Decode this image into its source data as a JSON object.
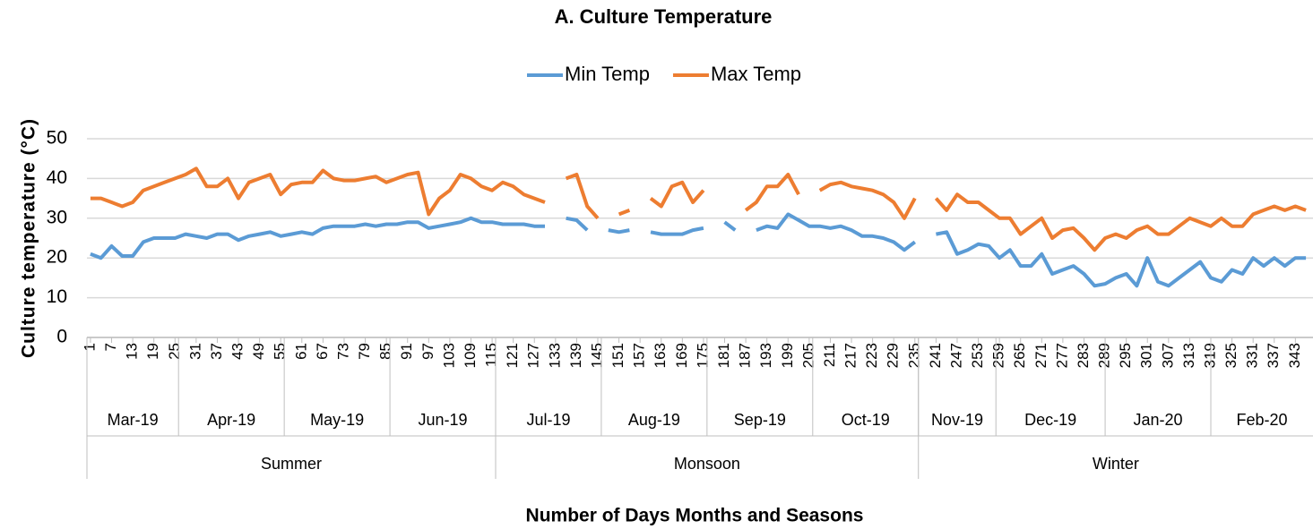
{
  "chart_data": {
    "type": "line",
    "title": "A. Culture Temperature",
    "y_label": "Culture temperature (°C)",
    "x_label": "Number of Days Months and Seasons",
    "xlim": [
      0,
      348
    ],
    "xticks": [
      1,
      7,
      13,
      19,
      25,
      31,
      37,
      43,
      49,
      55,
      61,
      67,
      73,
      79,
      85,
      91,
      97,
      103,
      109,
      115,
      121,
      127,
      133,
      139,
      145,
      151,
      157,
      163,
      169,
      175,
      181,
      187,
      193,
      199,
      205,
      211,
      217,
      223,
      229,
      235,
      241,
      247,
      253,
      259,
      265,
      271,
      277,
      283,
      289,
      295,
      301,
      307,
      313,
      319,
      325,
      331,
      337,
      343
    ],
    "ylim": [
      0,
      50
    ],
    "yticks": [
      0,
      10,
      20,
      30,
      40,
      50
    ],
    "grid": true,
    "legend": "top",
    "months": [
      {
        "label": "Mar-19",
        "start": 0,
        "end": 26
      },
      {
        "label": "Apr-19",
        "start": 26,
        "end": 56
      },
      {
        "label": "May-19",
        "start": 56,
        "end": 86
      },
      {
        "label": "Jun-19",
        "start": 86,
        "end": 116
      },
      {
        "label": "Jul-19",
        "start": 116,
        "end": 146
      },
      {
        "label": "Aug-19",
        "start": 146,
        "end": 176
      },
      {
        "label": "Sep-19",
        "start": 176,
        "end": 206
      },
      {
        "label": "Oct-19",
        "start": 206,
        "end": 236
      },
      {
        "label": "Nov-19",
        "start": 236,
        "end": 258
      },
      {
        "label": "Dec-19",
        "start": 258,
        "end": 289
      },
      {
        "label": "Jan-20",
        "start": 289,
        "end": 319
      },
      {
        "label": "Feb-20",
        "start": 319,
        "end": 348
      }
    ],
    "seasons": [
      {
        "label": "Summer",
        "start": 0,
        "end": 116
      },
      {
        "label": "Monsoon",
        "start": 116,
        "end": 236
      },
      {
        "label": "Winter",
        "start": 236,
        "end": 348
      }
    ],
    "x": [
      1,
      4,
      7,
      10,
      13,
      16,
      19,
      22,
      25,
      28,
      31,
      34,
      37,
      40,
      43,
      46,
      49,
      52,
      55,
      58,
      61,
      64,
      67,
      70,
      73,
      76,
      79,
      82,
      85,
      88,
      91,
      94,
      97,
      100,
      103,
      106,
      109,
      112,
      115,
      118,
      121,
      124,
      127,
      130,
      133,
      136,
      139,
      142,
      145,
      148,
      151,
      154,
      157,
      160,
      163,
      166,
      169,
      172,
      175,
      178,
      181,
      184,
      187,
      190,
      193,
      196,
      199,
      202,
      205,
      208,
      211,
      214,
      217,
      220,
      223,
      226,
      229,
      232,
      235,
      238,
      241,
      244,
      247,
      250,
      253,
      256,
      259,
      262,
      265,
      268,
      271,
      274,
      277,
      280,
      283,
      286,
      289,
      292,
      295,
      298,
      301,
      304,
      307,
      310,
      313,
      316,
      319,
      322,
      325,
      328,
      331,
      334,
      337,
      340,
      343,
      346
    ],
    "series": [
      {
        "name": "Min Temp",
        "color": "#5b9bd5",
        "values": [
          21,
          20,
          23,
          20.5,
          20.5,
          24,
          25,
          25,
          25,
          26,
          25.5,
          25,
          26,
          26,
          24.5,
          25.5,
          26,
          26.5,
          25.5,
          26,
          26.5,
          26,
          27.5,
          28,
          28,
          28,
          28.5,
          28,
          28.5,
          28.5,
          29,
          29,
          27.5,
          28,
          28.5,
          29,
          30,
          29,
          29,
          28.5,
          28.5,
          28.5,
          28,
          28,
          null,
          30,
          29.5,
          27,
          null,
          27,
          26.5,
          27,
          null,
          26.5,
          26,
          26,
          26,
          27,
          27.5,
          null,
          29,
          27,
          null,
          27,
          28,
          27.5,
          31,
          29.5,
          28,
          28,
          27.5,
          28,
          27,
          25.5,
          25.5,
          25,
          24,
          22,
          24,
          null,
          26,
          26.5,
          21,
          22,
          23.5,
          23,
          20,
          22,
          18,
          18,
          21,
          16,
          17,
          18,
          16,
          13,
          13.5,
          15,
          16,
          13,
          20,
          14,
          13,
          15,
          17,
          19,
          15,
          14,
          17,
          16,
          20,
          18,
          20,
          18,
          20,
          20
        ]
      },
      {
        "name": "Max Temp",
        "color": "#ed7d31",
        "values": [
          35,
          35,
          34,
          33,
          34,
          37,
          38,
          39,
          40,
          41,
          42.5,
          38,
          38,
          40,
          35,
          39,
          40,
          41,
          36,
          38.5,
          39,
          39,
          42,
          40,
          39.5,
          39.5,
          40,
          40.5,
          39,
          40,
          41,
          41.5,
          31,
          35,
          37,
          41,
          40,
          38,
          37,
          39,
          38,
          36,
          35,
          34,
          null,
          40,
          41,
          33,
          30,
          null,
          31,
          32,
          null,
          35,
          33,
          38,
          39,
          34,
          37,
          null,
          39,
          null,
          32,
          34,
          38,
          38,
          41,
          36,
          null,
          37,
          38.5,
          39,
          38,
          37.5,
          37,
          36,
          34,
          30,
          35,
          null,
          35,
          32,
          36,
          34,
          34,
          32,
          30,
          30,
          26,
          28,
          30,
          25,
          27,
          27.5,
          25,
          22,
          25,
          26,
          25,
          27,
          28,
          26,
          26,
          28,
          30,
          29,
          28,
          30,
          28,
          28,
          31,
          32,
          33,
          32,
          33,
          32
        ]
      }
    ]
  }
}
